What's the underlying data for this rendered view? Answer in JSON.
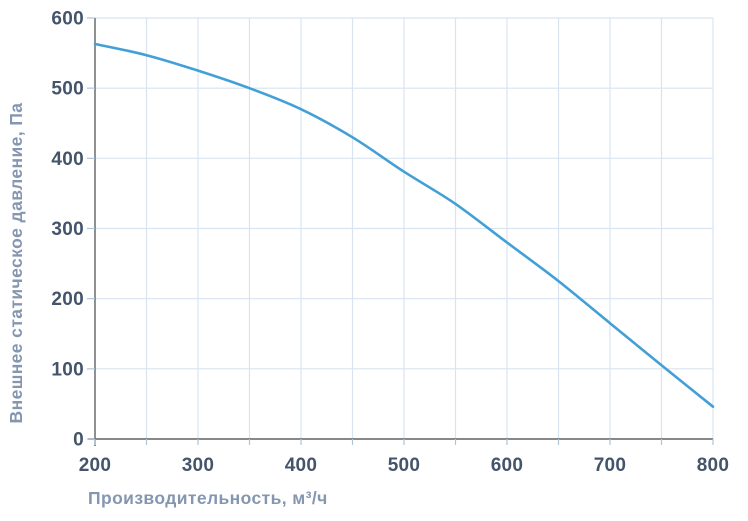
{
  "chart_data": {
    "type": "line",
    "title": "",
    "xlabel": "Производительность, м³/ч",
    "ylabel": "Внешнее статическое давление, Па",
    "xlim": [
      200,
      800
    ],
    "ylim": [
      0,
      600
    ],
    "x_tick_labels": [
      200,
      300,
      400,
      500,
      600,
      700,
      800
    ],
    "y_tick_labels": [
      0,
      100,
      200,
      300,
      400,
      500,
      600
    ],
    "x_grid_step": 50,
    "x_minor_tick_step": 50,
    "y_grid_step": 100,
    "grid": "on",
    "legend": "none",
    "series": [
      {
        "name": "external-static-pressure-curve",
        "color": "#42a0d6",
        "points": [
          [
            200,
            563
          ],
          [
            250,
            547
          ],
          [
            300,
            525
          ],
          [
            350,
            500
          ],
          [
            400,
            470
          ],
          [
            450,
            430
          ],
          [
            500,
            381
          ],
          [
            550,
            335
          ],
          [
            600,
            280
          ],
          [
            650,
            225
          ],
          [
            700,
            165
          ],
          [
            750,
            105
          ],
          [
            800,
            46
          ]
        ]
      }
    ],
    "colors": {
      "grid": "#d9e4f1",
      "tick": "#aec4da",
      "axis": "#606060",
      "tick_label": "#44546a",
      "axis_title": "#8496b0",
      "background": "#ffffff"
    }
  }
}
